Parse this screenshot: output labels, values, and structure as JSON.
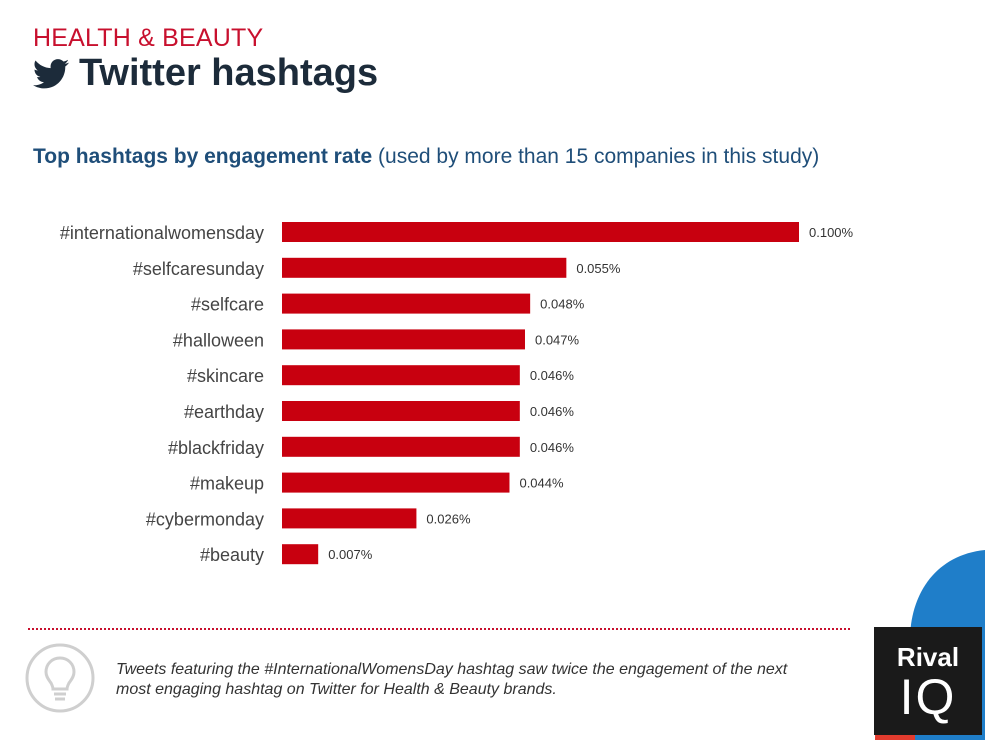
{
  "header": {
    "category": "HEALTH & BEAUTY",
    "title": "Twitter hashtags",
    "subtitle_bold": "Top hashtags by engagement rate",
    "subtitle_rest": " (used by more than 15 companies in this study)"
  },
  "chart_data": {
    "type": "bar",
    "orientation": "horizontal",
    "categories": [
      "#internationalwomensday",
      "#selfcaresunday",
      "#selfcare",
      "#halloween",
      "#skincare",
      "#earthday",
      "#blackfriday",
      "#makeup",
      "#cybermonday",
      "#beauty"
    ],
    "values": [
      0.1,
      0.055,
      0.048,
      0.047,
      0.046,
      0.046,
      0.046,
      0.044,
      0.026,
      0.007
    ],
    "value_labels": [
      "0.100%",
      "0.055%",
      "0.048%",
      "0.047%",
      "0.046%",
      "0.046%",
      "0.046%",
      "0.044%",
      "0.026%",
      "0.007%"
    ],
    "title": "Top hashtags by engagement rate (used by more than 15 companies in this study)",
    "xlabel": "",
    "ylabel": "",
    "xlim": [
      0,
      0.1
    ],
    "grid": false,
    "bar_color": "#c8000f"
  },
  "insight": {
    "text": "Tweets featuring the #InternationalWomensDay hashtag saw twice the engagement of the next most engaging hashtag on Twitter for Health & Beauty brands."
  },
  "logo": {
    "line1": "Rival",
    "line2": "IQ"
  },
  "colors": {
    "accent": "#c8102e",
    "title": "#1c2b3a",
    "subtitle": "#1f4e79",
    "blue": "#1f7ec9"
  },
  "icons": [
    "twitter-bird-icon",
    "lightbulb-icon"
  ]
}
